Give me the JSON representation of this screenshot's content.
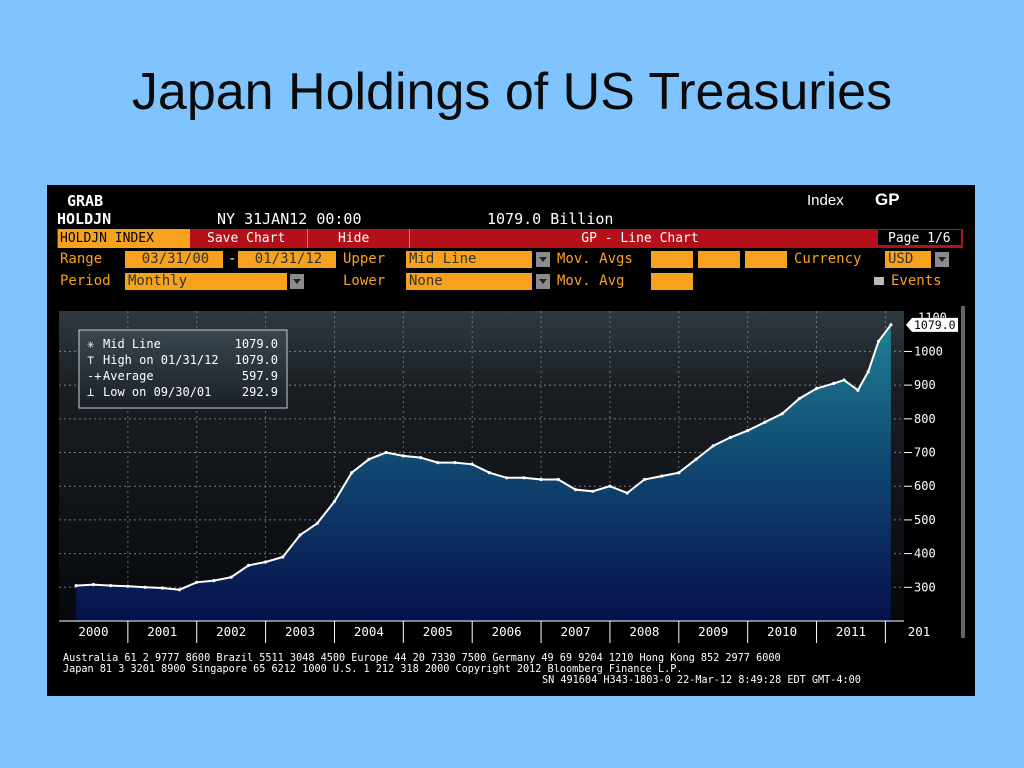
{
  "slide": {
    "title": "Japan Holdings of US Treasuries"
  },
  "header": {
    "grab": "GRAB",
    "ticker": "HOLDJN",
    "datetime": "NY 31JAN12 00:00",
    "value": "1079.0 Billion",
    "index_label": "Index",
    "index_code": "GP"
  },
  "toolbar": {
    "security": "HOLDJN INDEX",
    "save_chart": "Save Chart",
    "hide": "Hide",
    "chart_title": "GP - Line Chart",
    "page": "Page 1/6"
  },
  "controls": {
    "range_label": "Range",
    "range_start": "03/31/00",
    "range_dash": "-",
    "range_end": "01/31/12",
    "upper_label": "Upper",
    "upper_value": "Mid Line",
    "mov_avgs_label": "Mov. Avgs",
    "currency_label": "Currency",
    "currency_value": "USD",
    "period_label": "Period",
    "period_value": "Monthly",
    "lower_label": "Lower",
    "lower_value": "None",
    "mov_avg_label": "Mov. Avg",
    "events_label": "Events"
  },
  "legend": {
    "rows": [
      {
        "icon": "✳",
        "label": "Mid Line",
        "value": "1079.0"
      },
      {
        "icon": "⊤",
        "label": "High on 01/31/12",
        "value": "1079.0"
      },
      {
        "icon": "-+-",
        "label": "Average",
        "value": "597.9"
      },
      {
        "icon": "⊥",
        "label": "Low on 09/30/01",
        "value": "292.9"
      }
    ]
  },
  "footer": {
    "line1": "Australia 61 2 9777 8600 Brazil 5511 3048 4500 Europe 44 20 7330 7500 Germany 49 69 9204 1210 Hong Kong 852 2977 6000",
    "line2": "Japan 81 3 3201 8900        Singapore 65 6212 1000       U.S. 1 212 318 2000          Copyright 2012 Bloomberg Finance L.P.",
    "line3": "SN 491604 H343-1803-0 22-Mar-12  8:49:28 EDT  GMT-4:00"
  },
  "colors": {
    "background": "#80c4ff",
    "terminal": "#000000",
    "orange": "#f7a21e",
    "red_bar": "#b3101a",
    "line": "#ffffff"
  },
  "chart_data": {
    "type": "area",
    "ylim": [
      200,
      1120
    ],
    "yticks": [
      300,
      400,
      500,
      600,
      700,
      800,
      900,
      1000
    ],
    "ytick_labels": [
      "300",
      "400",
      "500",
      "600",
      "700",
      "800",
      "900",
      "1000"
    ],
    "top_tick_label": "1100",
    "last_value_label": "1079.0",
    "xtick_labels": [
      "2000",
      "2001",
      "2002",
      "2003",
      "2004",
      "2005",
      "2006",
      "2007",
      "2008",
      "2009",
      "2010",
      "2011",
      "201"
    ],
    "grid": true,
    "legend_position": "top-left",
    "series": [
      {
        "name": "Mid Line",
        "x": [
          2000.25,
          2000.5,
          2000.75,
          2001.0,
          2001.25,
          2001.5,
          2001.75,
          2002.0,
          2002.25,
          2002.5,
          2002.75,
          2003.0,
          2003.25,
          2003.5,
          2003.75,
          2004.0,
          2004.25,
          2004.5,
          2004.75,
          2005.0,
          2005.25,
          2005.5,
          2005.75,
          2006.0,
          2006.25,
          2006.5,
          2006.75,
          2007.0,
          2007.25,
          2007.5,
          2007.75,
          2008.0,
          2008.25,
          2008.5,
          2008.75,
          2009.0,
          2009.25,
          2009.5,
          2009.75,
          2010.0,
          2010.25,
          2010.5,
          2010.75,
          2011.0,
          2011.25,
          2011.4,
          2011.6,
          2011.75,
          2011.9,
          2012.08
        ],
        "values": [
          305,
          308,
          305,
          303,
          300,
          298,
          293,
          315,
          320,
          330,
          365,
          375,
          390,
          455,
          490,
          555,
          640,
          680,
          700,
          690,
          685,
          670,
          670,
          665,
          640,
          625,
          625,
          620,
          620,
          590,
          585,
          600,
          580,
          620,
          630,
          640,
          680,
          720,
          745,
          765,
          790,
          815,
          860,
          890,
          905,
          915,
          885,
          940,
          1030,
          1079
        ]
      }
    ]
  }
}
